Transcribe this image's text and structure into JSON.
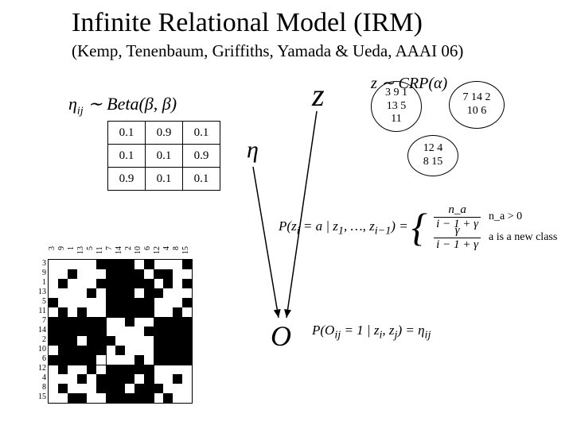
{
  "title": "Infinite Relational Model (IRM)",
  "subtitle": "(Kemp, Tenenbaum, Griffiths, Yamada & Ueda, AAAI 06)",
  "eta_prior": "η_{ij} ∼ Beta(β, β)",
  "z_prior": "z ∼ CRP(α)",
  "big_z": "z",
  "big_eta": "η",
  "big_O": "O",
  "eta_table": {
    "rows": [
      [
        "0.1",
        "0.9",
        "0.1"
      ],
      [
        "0.1",
        "0.1",
        "0.9"
      ],
      [
        "0.9",
        "0.1",
        "0.1"
      ]
    ],
    "cell_border": "#000000",
    "font_size": 15
  },
  "clusters": {
    "c1": "3 9 1\n13 5\n11",
    "c2": "7 14 2\n10 6",
    "c3": "12 4\n8 15",
    "border_color": "#000000"
  },
  "matrix": {
    "labels": [
      "3",
      "9",
      "1",
      "13",
      "5",
      "11",
      "7",
      "14",
      "2",
      "10",
      "6",
      "12",
      "4",
      "8",
      "15"
    ],
    "cluster_breaks": [
      6,
      11
    ],
    "cell_size": 12,
    "colors": {
      "filled": "#000000",
      "empty": "#ffffff",
      "border": "#000000"
    },
    "rows": [
      "000001111010001",
      "001000111101100",
      "010001111110101",
      "000010111011000",
      "100000111110001",
      "010100111110010",
      "111111001001111",
      "111111000011111",
      "111011100001111",
      "011111010001111",
      "111110000101111",
      "010010111110000",
      "000101111010010",
      "010001110111000",
      "001100111110100"
    ]
  },
  "p_z_lhs": "P(z_i = a | z_1, …, z_{i−1}) =",
  "p_z_case1_num": "n_a",
  "p_z_case1_den": "i − 1 + γ",
  "p_z_case1_cond": "n_a > 0",
  "p_z_case2_num": "γ",
  "p_z_case2_den": "i − 1 + γ",
  "p_z_case2_cond": "a is a new class",
  "p_O": "P(O_{ij} = 1 | z_i, z_j) = η_{ij}",
  "background_color": "#ffffff"
}
